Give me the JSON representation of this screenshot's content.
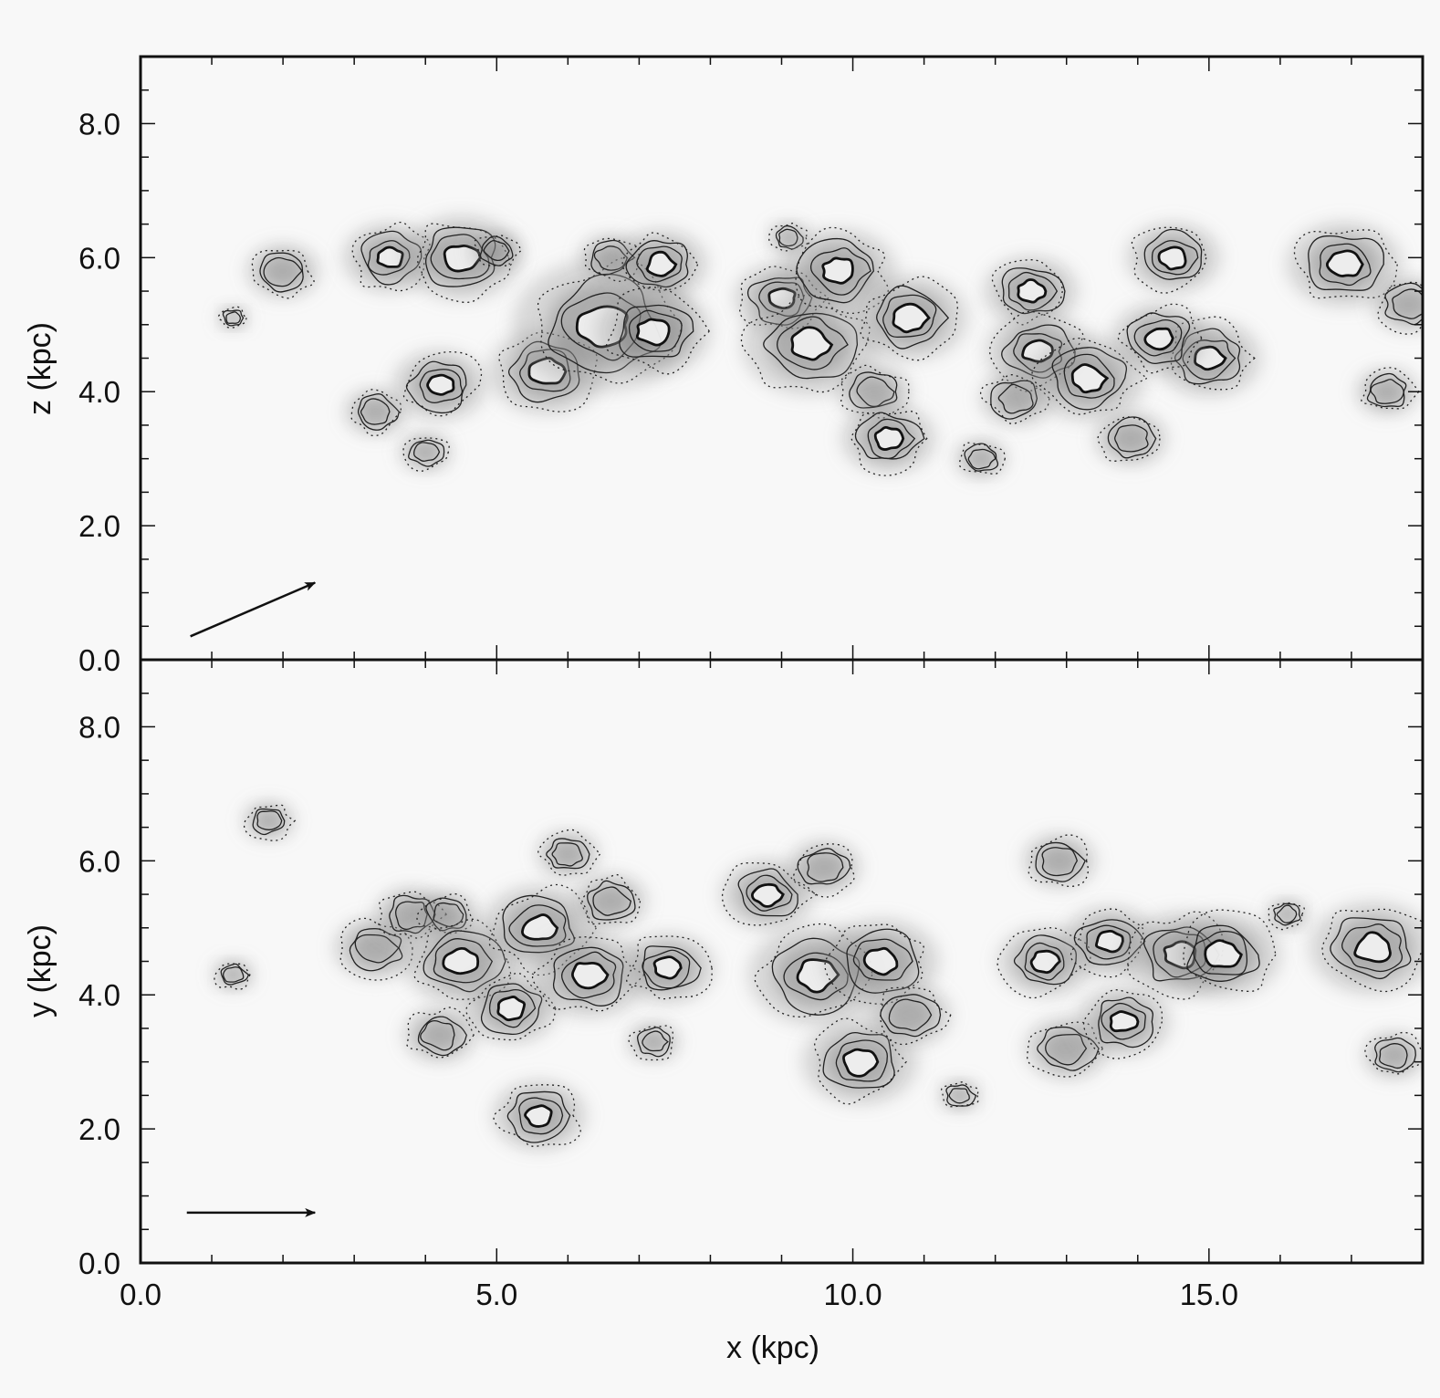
{
  "chart_data": [
    {
      "type": "heatmap",
      "panel": "top",
      "xlabel": "",
      "ylabel": "z (kpc)",
      "xlim": [
        0.0,
        18.0
      ],
      "ylim": [
        0.0,
        9.0
      ],
      "yticks": [
        "0.0",
        "2.0",
        "4.0",
        "6.0",
        "8.0"
      ],
      "grid": false,
      "flow_arrow": {
        "from": [
          0.7,
          0.35
        ],
        "to": [
          2.45,
          1.15
        ]
      },
      "clumps": [
        {
          "x": 1.3,
          "y": 5.1,
          "size": 0.15
        },
        {
          "x": 2.0,
          "y": 5.8,
          "size": 0.35
        },
        {
          "x": 3.5,
          "y": 6.0,
          "size": 0.45
        },
        {
          "x": 4.5,
          "y": 6.0,
          "size": 0.55
        },
        {
          "x": 5.0,
          "y": 6.1,
          "size": 0.25
        },
        {
          "x": 3.3,
          "y": 3.7,
          "size": 0.3
        },
        {
          "x": 4.0,
          "y": 3.1,
          "size": 0.25
        },
        {
          "x": 4.2,
          "y": 4.1,
          "size": 0.45
        },
        {
          "x": 5.7,
          "y": 4.3,
          "size": 0.55
        },
        {
          "x": 6.5,
          "y": 5.0,
          "size": 0.85
        },
        {
          "x": 6.6,
          "y": 6.0,
          "size": 0.3
        },
        {
          "x": 7.3,
          "y": 5.9,
          "size": 0.45
        },
        {
          "x": 7.2,
          "y": 4.9,
          "size": 0.55
        },
        {
          "x": 9.1,
          "y": 6.3,
          "size": 0.2
        },
        {
          "x": 9.0,
          "y": 5.4,
          "size": 0.45
        },
        {
          "x": 9.4,
          "y": 4.7,
          "size": 0.65
        },
        {
          "x": 9.8,
          "y": 5.8,
          "size": 0.55
        },
        {
          "x": 10.3,
          "y": 4.0,
          "size": 0.35
        },
        {
          "x": 10.5,
          "y": 3.3,
          "size": 0.45
        },
        {
          "x": 10.8,
          "y": 5.1,
          "size": 0.55
        },
        {
          "x": 12.5,
          "y": 5.5,
          "size": 0.45
        },
        {
          "x": 12.6,
          "y": 4.6,
          "size": 0.5
        },
        {
          "x": 12.3,
          "y": 3.9,
          "size": 0.35
        },
        {
          "x": 13.3,
          "y": 4.2,
          "size": 0.55
        },
        {
          "x": 13.9,
          "y": 3.3,
          "size": 0.35
        },
        {
          "x": 14.5,
          "y": 6.0,
          "size": 0.45
        },
        {
          "x": 15.0,
          "y": 4.5,
          "size": 0.5
        },
        {
          "x": 14.3,
          "y": 4.8,
          "size": 0.45
        },
        {
          "x": 16.9,
          "y": 5.9,
          "size": 0.55
        },
        {
          "x": 17.5,
          "y": 4.0,
          "size": 0.3
        },
        {
          "x": 17.8,
          "y": 5.3,
          "size": 0.35
        },
        {
          "x": 11.8,
          "y": 3.0,
          "size": 0.25
        }
      ]
    },
    {
      "type": "heatmap",
      "panel": "bottom",
      "xlabel": "x (kpc)",
      "ylabel": "y (kpc)",
      "xlim": [
        0.0,
        18.0
      ],
      "ylim": [
        0.0,
        9.0
      ],
      "xticks": [
        "0.0",
        "5.0",
        "10.0",
        "15.0"
      ],
      "yticks": [
        "0.0",
        "2.0",
        "4.0",
        "6.0",
        "8.0"
      ],
      "grid": false,
      "flow_arrow": {
        "from": [
          0.65,
          0.75
        ],
        "to": [
          2.45,
          0.75
        ]
      },
      "clumps": [
        {
          "x": 1.8,
          "y": 6.6,
          "size": 0.25
        },
        {
          "x": 1.3,
          "y": 4.3,
          "size": 0.2
        },
        {
          "x": 3.3,
          "y": 4.7,
          "size": 0.4
        },
        {
          "x": 3.8,
          "y": 5.2,
          "size": 0.35
        },
        {
          "x": 4.3,
          "y": 5.2,
          "size": 0.3
        },
        {
          "x": 4.5,
          "y": 4.5,
          "size": 0.55
        },
        {
          "x": 4.2,
          "y": 3.4,
          "size": 0.35
        },
        {
          "x": 5.6,
          "y": 5.0,
          "size": 0.55
        },
        {
          "x": 5.2,
          "y": 3.8,
          "size": 0.45
        },
        {
          "x": 6.3,
          "y": 4.3,
          "size": 0.55
        },
        {
          "x": 6.6,
          "y": 5.4,
          "size": 0.35
        },
        {
          "x": 7.4,
          "y": 4.4,
          "size": 0.45
        },
        {
          "x": 7.2,
          "y": 3.3,
          "size": 0.25
        },
        {
          "x": 5.6,
          "y": 2.2,
          "size": 0.45
        },
        {
          "x": 6.0,
          "y": 6.1,
          "size": 0.3
        },
        {
          "x": 8.8,
          "y": 5.5,
          "size": 0.45
        },
        {
          "x": 9.5,
          "y": 4.3,
          "size": 0.65
        },
        {
          "x": 10.4,
          "y": 4.5,
          "size": 0.55
        },
        {
          "x": 10.1,
          "y": 3.0,
          "size": 0.55
        },
        {
          "x": 10.8,
          "y": 3.7,
          "size": 0.4
        },
        {
          "x": 9.6,
          "y": 5.9,
          "size": 0.35
        },
        {
          "x": 12.7,
          "y": 4.5,
          "size": 0.45
        },
        {
          "x": 13.0,
          "y": 3.2,
          "size": 0.4
        },
        {
          "x": 13.6,
          "y": 4.8,
          "size": 0.45
        },
        {
          "x": 14.6,
          "y": 4.6,
          "size": 0.55
        },
        {
          "x": 15.2,
          "y": 4.6,
          "size": 0.55
        },
        {
          "x": 13.8,
          "y": 3.6,
          "size": 0.45
        },
        {
          "x": 12.9,
          "y": 6.0,
          "size": 0.35
        },
        {
          "x": 16.1,
          "y": 5.2,
          "size": 0.2
        },
        {
          "x": 17.3,
          "y": 4.7,
          "size": 0.6
        },
        {
          "x": 17.6,
          "y": 3.1,
          "size": 0.3
        },
        {
          "x": 11.5,
          "y": 2.5,
          "size": 0.2
        }
      ]
    }
  ]
}
